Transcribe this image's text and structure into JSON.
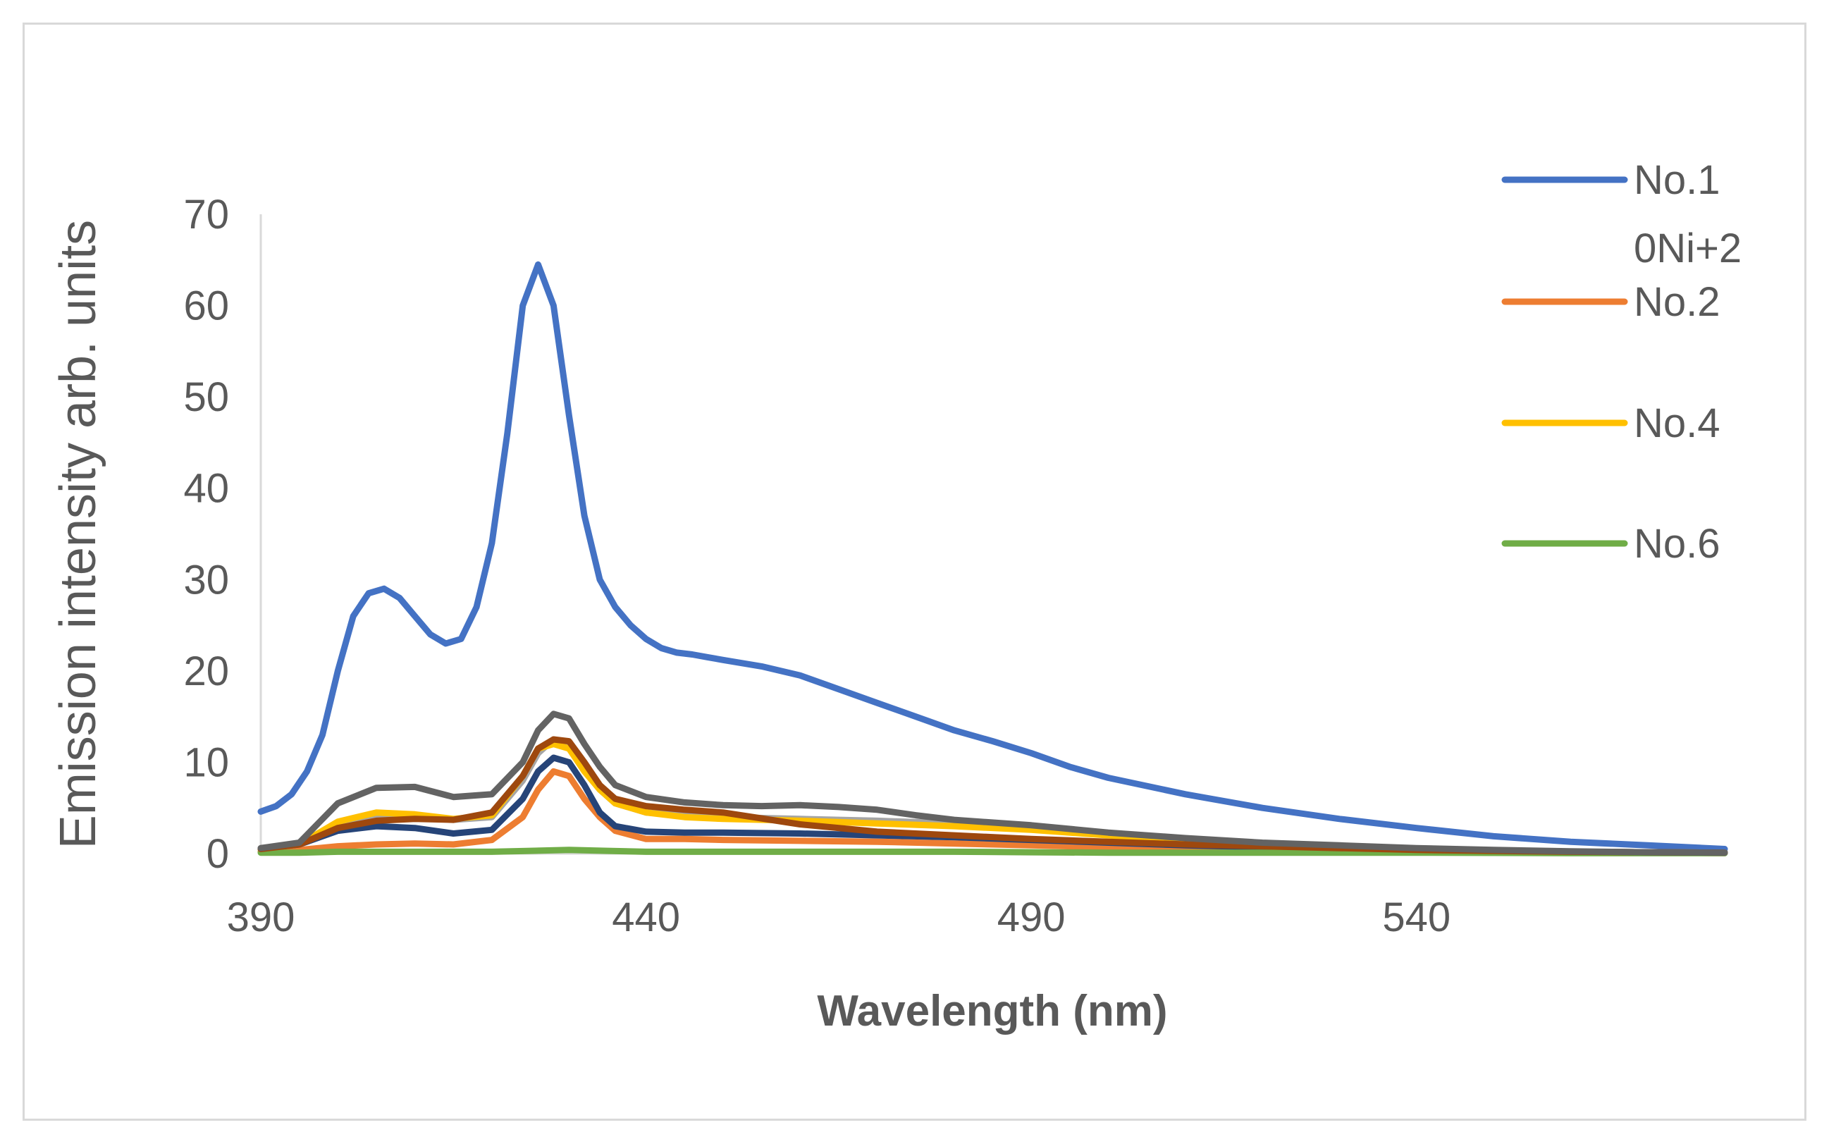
{
  "chart_data": {
    "type": "line",
    "title": "",
    "xlabel": "Wavelength (nm)",
    "ylabel": "Emission intensity arb. units",
    "xlim": [
      390,
      580
    ],
    "ylim": [
      0,
      70
    ],
    "xticks": [
      390,
      440,
      490,
      540
    ],
    "yticks": [
      0,
      10,
      20,
      30,
      40,
      50,
      60,
      70
    ],
    "grid": false,
    "legend_position": "right",
    "series": [
      {
        "name": "No.1",
        "color": "#4472c4",
        "x": [
          390,
          392,
          394,
          396,
          398,
          400,
          402,
          404,
          406,
          408,
          410,
          412,
          414,
          416,
          418,
          420,
          422,
          424,
          426,
          428,
          430,
          432,
          434,
          436,
          438,
          440,
          442,
          444,
          446,
          448,
          450,
          455,
          460,
          465,
          470,
          475,
          480,
          485,
          490,
          495,
          500,
          510,
          520,
          530,
          540,
          550,
          560,
          570,
          580
        ],
        "y": [
          4.6,
          5.2,
          6.5,
          9,
          13,
          20,
          26,
          28.5,
          29,
          28,
          26,
          24,
          23,
          23.5,
          27,
          34,
          46,
          60,
          64.5,
          60,
          48,
          37,
          30,
          27,
          25,
          23.5,
          22.5,
          22,
          21.8,
          21.5,
          21.2,
          20.5,
          19.5,
          18,
          16.5,
          15,
          13.5,
          12.3,
          11,
          9.5,
          8.3,
          6.5,
          5,
          3.8,
          2.8,
          1.9,
          1.3,
          0.9,
          0.5
        ]
      },
      {
        "name": "No.2",
        "color": "#ed7d31",
        "x": [
          390,
          395,
          400,
          405,
          410,
          415,
          420,
          424,
          426,
          428,
          430,
          432,
          434,
          436,
          440,
          445,
          450,
          460,
          470,
          480,
          490,
          500,
          510,
          520,
          530,
          540,
          550,
          560,
          570,
          580
        ],
        "y": [
          0.2,
          0.4,
          0.8,
          1.0,
          1.1,
          1.0,
          1.5,
          4,
          7,
          9,
          8.5,
          6,
          4,
          2.5,
          1.6,
          1.6,
          1.5,
          1.4,
          1.3,
          1.1,
          0.9,
          0.7,
          0.6,
          0.5,
          0.4,
          0.3,
          0.2,
          0.15,
          0.1,
          0.1
        ]
      },
      {
        "name": "0Ni+2",
        "color": "#a5a5a5",
        "x": [
          390,
          395,
          400,
          405,
          410,
          415,
          420,
          424,
          426,
          428,
          430,
          432,
          434,
          436,
          440,
          445,
          450,
          460,
          470,
          480,
          490,
          500,
          510,
          520,
          530,
          540,
          550,
          560,
          570,
          580
        ],
        "y": [
          0.5,
          1.0,
          3,
          4.2,
          4.2,
          3.7,
          4,
          8,
          11,
          12.5,
          12,
          9.5,
          7,
          5.5,
          4.5,
          4.2,
          4,
          3.8,
          3.6,
          3.3,
          2.8,
          2.2,
          1.6,
          1.1,
          0.8,
          0.5,
          0.3,
          0.2,
          0.15,
          0.1
        ]
      },
      {
        "name": "No.4",
        "color": "#ffc000",
        "x": [
          390,
          395,
          400,
          405,
          410,
          415,
          420,
          424,
          426,
          428,
          430,
          432,
          434,
          436,
          440,
          445,
          450,
          460,
          470,
          480,
          490,
          500,
          510,
          520,
          530,
          540,
          550,
          560,
          570,
          580
        ],
        "y": [
          0.5,
          1.0,
          3.5,
          4.5,
          4.3,
          3.8,
          4.2,
          8.5,
          11.5,
          12,
          11.5,
          9,
          7,
          5.5,
          4.5,
          4,
          3.8,
          3.6,
          3.3,
          3,
          2.6,
          2,
          1.4,
          1,
          0.7,
          0.45,
          0.3,
          0.2,
          0.15,
          0.1
        ]
      },
      {
        "name": "",
        "color": "#264478",
        "x": [
          390,
          395,
          400,
          405,
          410,
          415,
          420,
          424,
          426,
          428,
          430,
          432,
          434,
          436,
          440,
          445,
          450,
          460,
          470,
          480,
          490,
          500,
          510,
          520,
          530,
          540,
          550,
          560,
          570,
          580
        ],
        "y": [
          0.5,
          1.0,
          2.5,
          3,
          2.8,
          2.2,
          2.6,
          6,
          9,
          10.5,
          10,
          7.5,
          4.5,
          3,
          2.4,
          2.3,
          2.3,
          2.2,
          2.0,
          1.8,
          1.5,
          1.2,
          0.9,
          0.7,
          0.5,
          0.35,
          0.25,
          0.2,
          0.15,
          0.1
        ]
      },
      {
        "name": "No.6",
        "color": "#70ad47",
        "x": [
          390,
          395,
          400,
          405,
          410,
          415,
          420,
          425,
          430,
          435,
          440,
          450,
          460,
          470,
          480,
          490,
          500,
          520,
          540,
          560,
          580
        ],
        "y": [
          0.1,
          0.1,
          0.2,
          0.2,
          0.2,
          0.2,
          0.2,
          0.3,
          0.4,
          0.3,
          0.2,
          0.2,
          0.2,
          0.2,
          0.2,
          0.15,
          0.1,
          0.1,
          0.1,
          0.05,
          0.05
        ]
      },
      {
        "name": "",
        "color": "#9e480e",
        "x": [
          390,
          395,
          400,
          405,
          410,
          415,
          420,
          424,
          426,
          428,
          430,
          432,
          434,
          436,
          440,
          445,
          450,
          460,
          470,
          480,
          490,
          500,
          510,
          520,
          530,
          540,
          550,
          560,
          570,
          580
        ],
        "y": [
          0.5,
          1.0,
          2.8,
          3.6,
          3.8,
          3.7,
          4.5,
          8.5,
          11.5,
          12.5,
          12.3,
          10,
          7.5,
          6,
          5.2,
          4.8,
          4.5,
          3.2,
          2.4,
          2.0,
          1.6,
          1.3,
          1.0,
          0.8,
          0.6,
          0.4,
          0.3,
          0.2,
          0.15,
          0.1
        ]
      },
      {
        "name": "",
        "color": "#636363",
        "x": [
          390,
          395,
          400,
          405,
          410,
          415,
          420,
          424,
          426,
          428,
          430,
          432,
          434,
          436,
          440,
          445,
          450,
          455,
          460,
          465,
          470,
          475,
          480,
          490,
          500,
          510,
          520,
          530,
          540,
          550,
          560,
          570,
          580
        ],
        "y": [
          0.6,
          1.2,
          5.5,
          7.2,
          7.3,
          6.2,
          6.5,
          10,
          13.5,
          15.3,
          14.8,
          12,
          9.5,
          7.5,
          6.2,
          5.6,
          5.3,
          5.2,
          5.3,
          5.1,
          4.8,
          4.2,
          3.7,
          3.1,
          2.3,
          1.7,
          1.2,
          0.9,
          0.6,
          0.4,
          0.25,
          0.15,
          0.1
        ]
      }
    ],
    "legend_entries": [
      {
        "label": "No.1",
        "color": "#4472c4"
      },
      {
        "label": "0Ni+2",
        "color": ""
      },
      {
        "label": "No.2",
        "color": "#ed7d31"
      },
      {
        "label": "No.4",
        "color": "#ffc000"
      },
      {
        "label": "No.6",
        "color": "#70ad47"
      }
    ]
  }
}
